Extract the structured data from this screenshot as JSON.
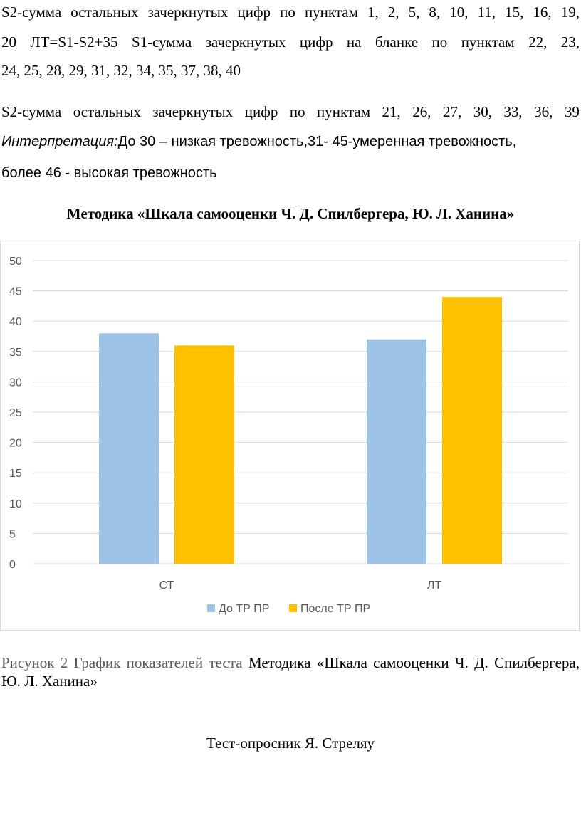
{
  "text": {
    "line1_words": [
      "S2-сумма",
      "остальных",
      "зачеркнутых",
      "цифр",
      "по",
      "пунктам",
      "1,",
      "2,",
      "5,",
      "8,",
      "10,",
      "11,",
      "15,",
      "16,",
      "19,"
    ],
    "line2_words": [
      "20",
      "ЛТ=S1-S2+35",
      "S1-сумма",
      "зачеркнутых",
      "цифр",
      "на",
      "бланке",
      "по",
      "пунктам",
      "22,",
      "23,"
    ],
    "line3": "24, 25, 28, 29, 31, 32, 34, 35, 37, 38, 40",
    "line4_words": [
      "S2-сумма",
      "остальных",
      "зачеркнутых",
      "цифр",
      "по",
      "пунктам",
      "21,",
      "26,",
      "27,",
      "30,",
      "33,",
      "36,",
      "39"
    ],
    "interp_label": "Интерпретация:",
    "interp_rest": "До 30 – низкая тревожность,31- 45-умеренная тревожность,",
    "interp_line2": "более 46 - высокая тревожность",
    "heading": "Методика «Шкала самооценки Ч. Д. Спилбергера, Ю. Л. Ханина»",
    "caption_gray": "Рисунок 2 График показателей теста",
    "caption_rest": "Методика «Шкала самооценки Ч. Д. Спилбергера, Ю. Л. Ханина»",
    "footer": "Тест-опросник Я. Стреляу"
  },
  "chart_data": {
    "type": "bar",
    "title": "",
    "xlabel": "",
    "ylabel": "",
    "categories": [
      "СТ",
      "ЛТ"
    ],
    "series": [
      {
        "name": "До ТР ПР",
        "values": [
          38,
          37
        ],
        "color": "#9dc3e6"
      },
      {
        "name": "После ТР ПР",
        "values": [
          36,
          44
        ],
        "color": "#ffc000"
      }
    ],
    "ylim": [
      0,
      50
    ],
    "yticks": [
      0,
      5,
      10,
      15,
      20,
      25,
      30,
      35,
      40,
      45,
      50
    ],
    "grid": true,
    "legend": "bottom-center"
  }
}
